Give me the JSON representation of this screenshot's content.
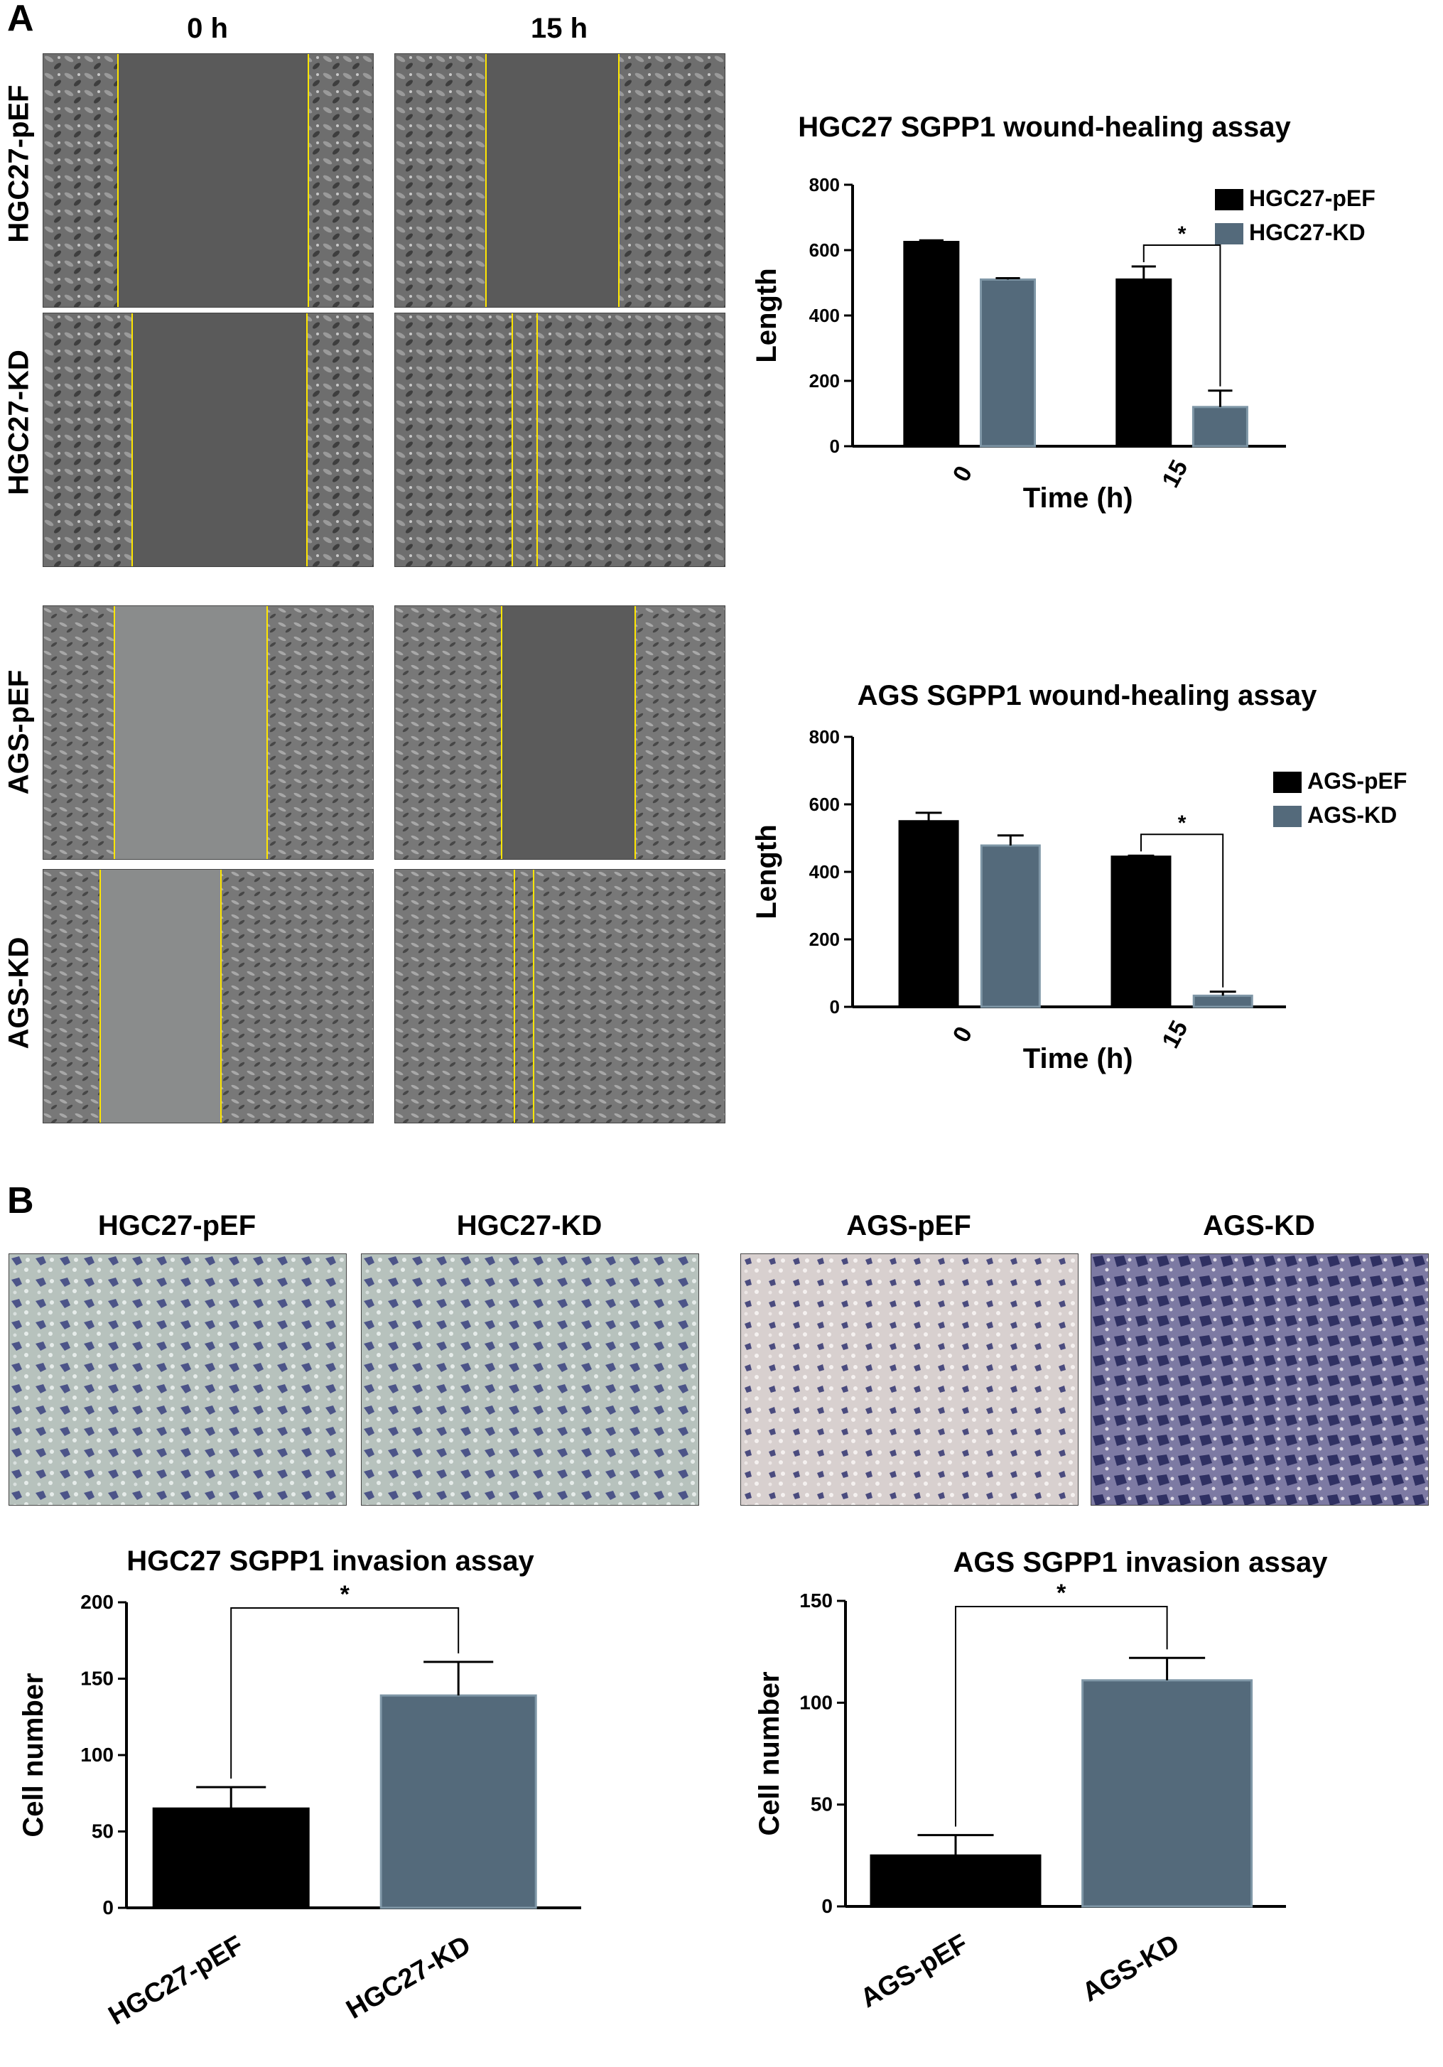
{
  "panel_a": {
    "letter": "A",
    "col_headers": [
      "0 h",
      "15 h"
    ],
    "rows": [
      "HGC27-pEF",
      "HGC27-KD",
      "AGS-pEF",
      "AGS-KD"
    ]
  },
  "panel_b": {
    "letter": "B",
    "image_labels": [
      "HGC27-pEF",
      "HGC27-KD",
      "AGS-pEF",
      "AGS-KD"
    ]
  },
  "colors": {
    "pef": "#000000",
    "kd": "#546a7b",
    "kd_edge": "#7f97a7",
    "guide": "#ffe600"
  },
  "chart_data": [
    {
      "id": "hgc27-wound",
      "type": "bar",
      "title": "HGC27 SGPP1 wound-healing assay",
      "xlabel": "Time (h)",
      "ylabel": "Length",
      "categories": [
        "0",
        "15"
      ],
      "yticks": [
        0,
        200,
        400,
        600,
        800
      ],
      "ylim": [
        0,
        800
      ],
      "legend": "top-right",
      "series": [
        {
          "name": "HGC27-pEF",
          "values": [
            625,
            510
          ],
          "errors": [
            5,
            40
          ]
        },
        {
          "name": "HGC27-KD",
          "values": [
            510,
            120
          ],
          "errors": [
            4,
            50
          ]
        }
      ],
      "annotations": [
        "*"
      ]
    },
    {
      "id": "ags-wound",
      "type": "bar",
      "title": "AGS SGPP1 wound-healing assay",
      "xlabel": "Time (h)",
      "ylabel": "Length",
      "categories": [
        "0",
        "15"
      ],
      "yticks": [
        0,
        200,
        400,
        600,
        800
      ],
      "ylim": [
        0,
        800
      ],
      "legend": "top-right",
      "series": [
        {
          "name": "AGS-pEF",
          "values": [
            550,
            445
          ],
          "errors": [
            25,
            3
          ]
        },
        {
          "name": "AGS-KD",
          "values": [
            478,
            33
          ],
          "errors": [
            30,
            12
          ]
        }
      ],
      "annotations": [
        "*"
      ]
    },
    {
      "id": "hgc27-invasion",
      "type": "bar",
      "title": "HGC27 SGPP1 invasion assay",
      "xlabel": "",
      "ylabel": "Cell number",
      "categories": [
        "HGC27-pEF",
        "HGC27-KD"
      ],
      "yticks": [
        0,
        50,
        100,
        150,
        200
      ],
      "ylim": [
        0,
        200
      ],
      "series": [
        {
          "values": [
            65,
            139
          ],
          "errors": [
            14,
            22
          ]
        }
      ],
      "annotations": [
        "*"
      ]
    },
    {
      "id": "ags-invasion",
      "type": "bar",
      "title": "AGS SGPP1 invasion assay",
      "xlabel": "",
      "ylabel": "Cell number",
      "categories": [
        "AGS-pEF",
        "AGS-KD"
      ],
      "yticks": [
        0,
        50,
        100,
        150
      ],
      "ylim": [
        0,
        150
      ],
      "series": [
        {
          "values": [
            25,
            111
          ],
          "errors": [
            10,
            11
          ]
        }
      ],
      "annotations": [
        "*"
      ]
    }
  ]
}
